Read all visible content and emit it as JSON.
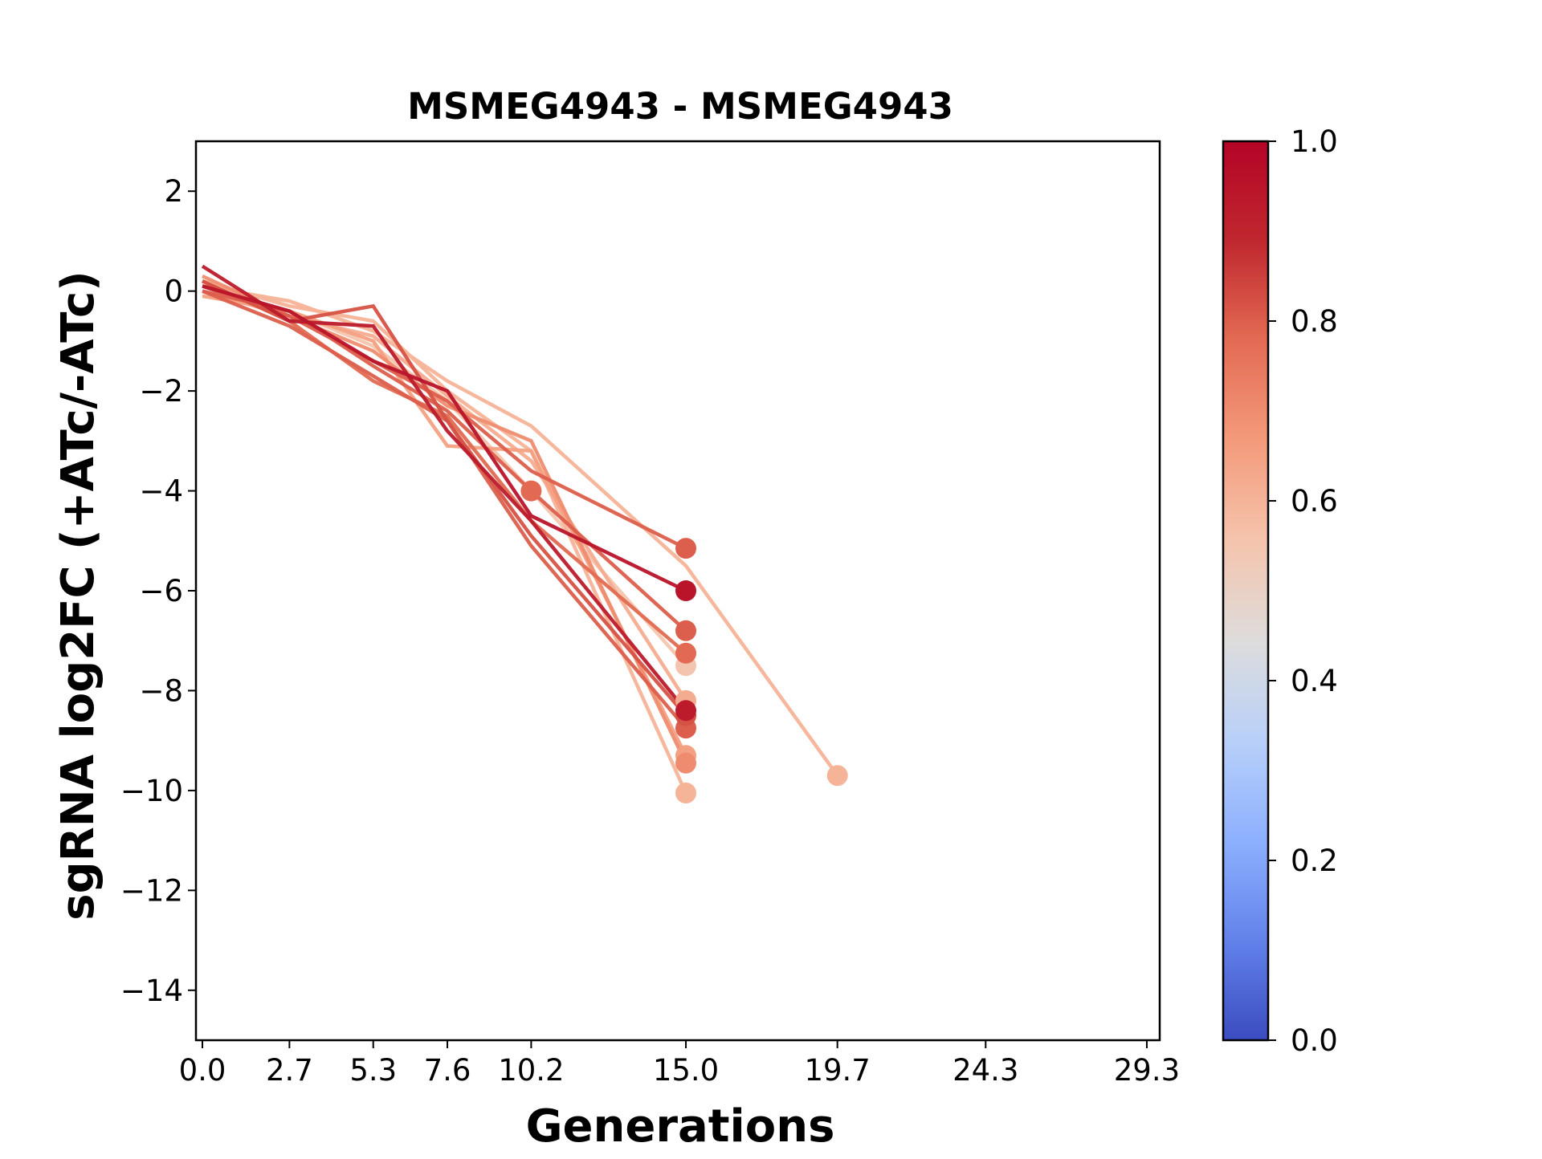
{
  "chart_data": {
    "type": "line",
    "title": "MSMEG4943 - MSMEG4943",
    "xlabel": "Generations",
    "ylabel": "sgRNA log2FC (+ATc/-ATc)",
    "xlim": [
      -0.2,
      29.7
    ],
    "ylim": [
      -15,
      3
    ],
    "x_ticks": [
      0.0,
      2.7,
      5.3,
      7.6,
      10.2,
      15.0,
      19.7,
      24.3,
      29.3
    ],
    "x_tick_labels": [
      "0.0",
      "2.7",
      "5.3",
      "7.6",
      "10.2",
      "15.0",
      "19.7",
      "24.3",
      "29.3"
    ],
    "y_ticks": [
      2,
      0,
      -2,
      -4,
      -6,
      -8,
      -10,
      -12,
      -14
    ],
    "y_tick_labels": [
      "2",
      "0",
      "−2",
      "−4",
      "−6",
      "−8",
      "−10",
      "−12",
      "−14"
    ],
    "grid": false,
    "legend": "none",
    "colorbar": {
      "colormap": "coolwarm",
      "range": [
        0.0,
        1.0
      ],
      "ticks": [
        0.0,
        0.2,
        0.4,
        0.6,
        0.8,
        1.0
      ],
      "tick_labels": [
        "0.0",
        "0.2",
        "0.4",
        "0.6",
        "0.8",
        "1.0"
      ],
      "stops": [
        "#3b4cc0",
        "#6282ea",
        "#8db0fe",
        "#b8d0f9",
        "#dddcdc",
        "#f5c4ac",
        "#f49a7b",
        "#e36b53",
        "#c0282f",
        "#b40426"
      ]
    },
    "series": [
      {
        "value": 0.6,
        "x": [
          0.0,
          2.7,
          5.3,
          7.6,
          10.2,
          15.0,
          19.7
        ],
        "y": [
          0.1,
          -0.2,
          -0.8,
          -1.8,
          -2.7,
          -5.5,
          -9.7
        ]
      },
      {
        "value": 0.6,
        "x": [
          0.0,
          2.7,
          5.3,
          7.6,
          10.2,
          15.0
        ],
        "y": [
          0.2,
          -0.3,
          -0.6,
          -2.0,
          -3.2,
          -10.05
        ]
      },
      {
        "value": 0.65,
        "x": [
          0.0,
          2.7,
          5.3,
          7.6,
          10.2,
          15.0
        ],
        "y": [
          -0.1,
          -0.4,
          -1.0,
          -3.1,
          -3.2,
          -9.3
        ]
      },
      {
        "value": 0.7,
        "x": [
          0.0,
          2.7,
          5.3,
          7.6,
          10.2,
          15.0
        ],
        "y": [
          0.3,
          -0.5,
          -1.2,
          -2.3,
          -3.0,
          -9.45
        ]
      },
      {
        "value": 0.62,
        "x": [
          0.0,
          2.7,
          5.3,
          7.6,
          10.2,
          15.0
        ],
        "y": [
          0.0,
          -0.5,
          -0.9,
          -2.1,
          -3.4,
          -8.2
        ]
      },
      {
        "value": 0.55,
        "x": [
          0.0,
          2.7,
          5.3,
          7.6,
          10.2,
          15.0
        ],
        "y": [
          0.1,
          -0.4,
          -1.1,
          -2.2,
          -4.0,
          -7.5
        ]
      },
      {
        "value": 0.78,
        "x": [
          0.0,
          2.7,
          5.3,
          7.6,
          10.2,
          15.0
        ],
        "y": [
          0.2,
          -0.6,
          -1.8,
          -2.5,
          -4.6,
          -7.25
        ]
      },
      {
        "value": 0.8,
        "x": [
          0.0,
          2.7,
          5.3,
          7.6,
          10.2,
          15.0
        ],
        "y": [
          0.0,
          -0.4,
          -1.5,
          -2.4,
          -4.0,
          -6.8
        ]
      },
      {
        "value": 0.8,
        "x": [
          0.0,
          2.7,
          5.3,
          7.6,
          10.2,
          15.0
        ],
        "y": [
          0.1,
          -0.5,
          -1.4,
          -2.2,
          -3.6,
          -5.15
        ]
      },
      {
        "value": 0.8,
        "x": [
          0.0,
          2.7,
          5.3,
          7.6,
          10.2,
          15.0
        ],
        "y": [
          0.0,
          -0.7,
          -1.7,
          -2.6,
          -5.1,
          -8.75
        ]
      },
      {
        "value": 0.82,
        "x": [
          0.0,
          2.7,
          5.3,
          7.6,
          10.2,
          15.0
        ],
        "y": [
          0.2,
          -0.6,
          -0.3,
          -2.6,
          -4.9,
          -8.5
        ]
      },
      {
        "value": 0.93,
        "x": [
          0.0,
          2.7,
          5.3,
          7.6,
          10.2,
          15.0
        ],
        "y": [
          0.5,
          -0.6,
          -0.7,
          -2.8,
          -4.6,
          -8.4
        ]
      },
      {
        "value": 0.95,
        "x": [
          0.0,
          2.7,
          5.3,
          7.6,
          10.2,
          15.0
        ],
        "y": [
          0.1,
          -0.4,
          -1.4,
          -2.0,
          -4.5,
          -6.0
        ]
      }
    ]
  }
}
